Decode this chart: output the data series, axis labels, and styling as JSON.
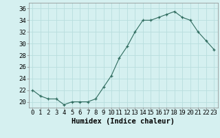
{
  "x": [
    0,
    1,
    2,
    3,
    4,
    5,
    6,
    7,
    8,
    9,
    10,
    11,
    12,
    13,
    14,
    15,
    16,
    17,
    18,
    19,
    20,
    21,
    22,
    23
  ],
  "y": [
    22,
    21,
    20.5,
    20.5,
    19.5,
    20,
    20,
    20,
    20.5,
    22.5,
    24.5,
    27.5,
    29.5,
    32,
    34,
    34,
    34.5,
    35,
    35.5,
    34.5,
    34,
    32,
    30.5,
    29
  ],
  "xlabel": "Humidex (Indice chaleur)",
  "yticks": [
    20,
    22,
    24,
    26,
    28,
    30,
    32,
    34,
    36
  ],
  "xticks": [
    0,
    1,
    2,
    3,
    4,
    5,
    6,
    7,
    8,
    9,
    10,
    11,
    12,
    13,
    14,
    15,
    16,
    17,
    18,
    19,
    20,
    21,
    22,
    23
  ],
  "xlim": [
    -0.5,
    23.5
  ],
  "ylim": [
    19,
    37
  ],
  "line_color": "#2e6b5e",
  "bg_color": "#d5f0f0",
  "grid_color": "#b8dede",
  "xlabel_fontsize": 7.5,
  "tick_fontsize": 6.5
}
